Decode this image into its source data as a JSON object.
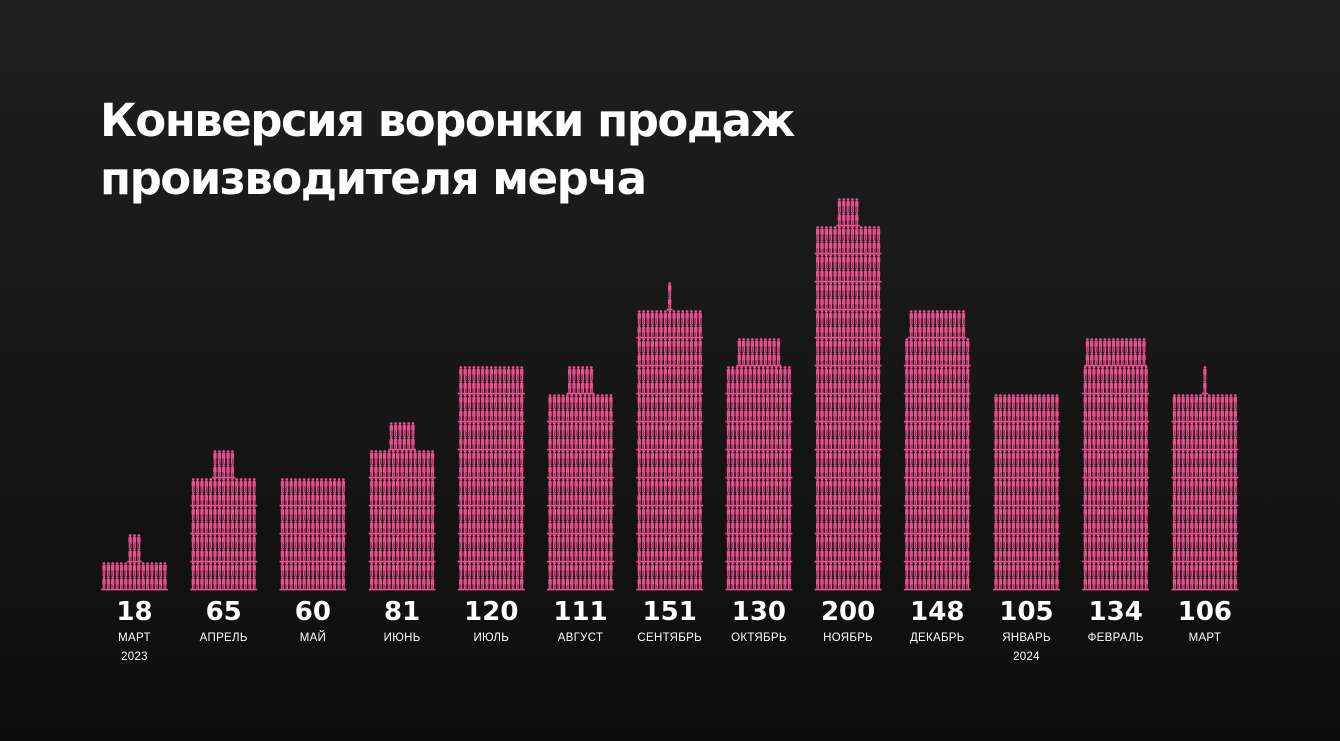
{
  "title": {
    "line1": "Конверсия воронки продаж",
    "line2": "производителя мерча"
  },
  "colors": {
    "background": "#181818",
    "figure": "#e8508c",
    "text": "#ffffff"
  },
  "icon": "person-figure-icon",
  "chart_data": {
    "type": "bar",
    "categories": [
      "МАРТ 2023",
      "АПРЕЛЬ",
      "МАЙ",
      "ИЮНЬ",
      "ИЮЛЬ",
      "АВГУСТ",
      "СЕНТЯБРЬ",
      "ОКТЯБРЬ",
      "НОЯБРЬ",
      "ДЕКАБРЬ",
      "ЯНВАРЬ 2024",
      "ФЕВРАЛЬ",
      "МАРТ"
    ],
    "months": [
      "МАРТ",
      "АПРЕЛЬ",
      "МАЙ",
      "ИЮНЬ",
      "ИЮЛЬ",
      "АВГУСТ",
      "СЕНТЯБРЬ",
      "ОКТЯБРЬ",
      "НОЯБРЬ",
      "ДЕКАБРЬ",
      "ЯНВАРЬ",
      "ФЕВРАЛЬ",
      "МАРТ"
    ],
    "years": [
      "2023",
      "",
      "",
      "",
      "",
      "",
      "",
      "",
      "",
      "",
      "2024",
      "",
      ""
    ],
    "values": [
      18,
      65,
      60,
      81,
      120,
      111,
      151,
      130,
      200,
      148,
      105,
      134,
      106
    ],
    "per_row": 15,
    "xlabel": "",
    "ylabel": ""
  }
}
